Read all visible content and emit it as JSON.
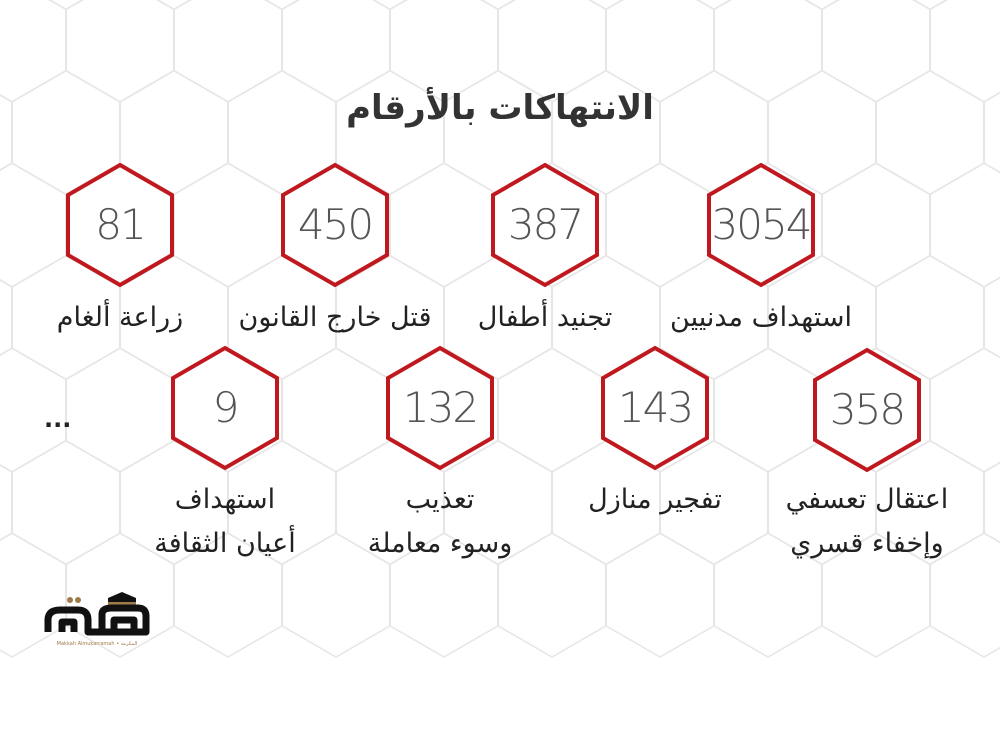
{
  "title": "الانتهاكات بالأرقام",
  "colors": {
    "hex_border": "#c0181f",
    "number": "#555555",
    "text": "#222222",
    "grid": "#e6e6e6",
    "logo_gold": "#a07b4a"
  },
  "stats": [
    {
      "value": "3054",
      "label": [
        "استهداف مدنيين"
      ]
    },
    {
      "value": "387",
      "label": [
        "تجنيد أطفال"
      ]
    },
    {
      "value": "450",
      "label": [
        "قتل خارج القانون"
      ]
    },
    {
      "value": "81",
      "label": [
        "زراعة ألغام"
      ]
    },
    {
      "value": "358",
      "label": [
        "اعتقال تعسفي",
        "وإخفاء قسري"
      ]
    },
    {
      "value": "143",
      "label": [
        "تفجير منازل"
      ]
    },
    {
      "value": "132",
      "label": [
        "تعذيب",
        "وسوء معاملة"
      ]
    },
    {
      "value": "9",
      "label": [
        "استهداف",
        "أعيان الثقافة"
      ]
    }
  ],
  "ellipsis": "...",
  "logo": {
    "main": "مكة",
    "sub": "Makkah Almukarramah • المكرمة"
  }
}
